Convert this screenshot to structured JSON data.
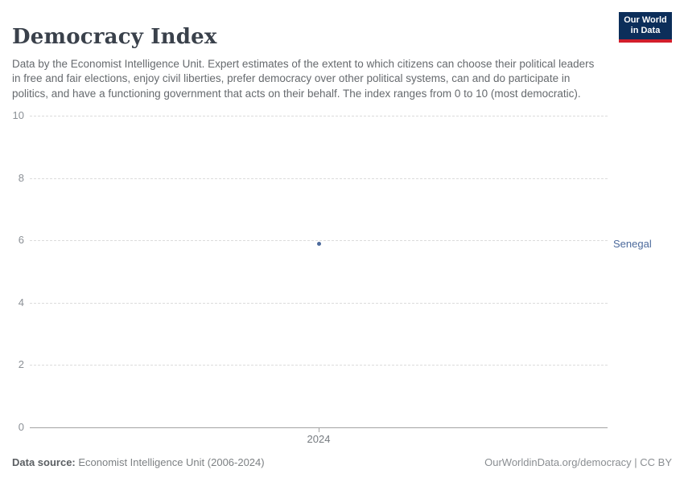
{
  "header": {
    "title": "Democracy Index",
    "subtitle": "Data by the Economist Intelligence Unit. Expert estimates of the extent to which citizens can choose their political leaders in free and fair elections, enjoy civil liberties, prefer democracy over other political systems, can and do participate in politics, and have a functioning government that acts on their behalf. The index ranges from 0 to 10 (most democratic).",
    "logo": {
      "line1": "Our World",
      "line2": "in Data"
    }
  },
  "chart_data": {
    "type": "scatter",
    "title": "Democracy Index",
    "series": [
      {
        "name": "Senegal",
        "x": [
          2024
        ],
        "values": [
          5.9
        ]
      }
    ],
    "x_tick_labels": [
      "2024"
    ],
    "y_ticks": [
      0,
      2,
      4,
      6,
      8,
      10
    ],
    "ylim": [
      0,
      10
    ],
    "grid": "horizontal-dashed",
    "legend_position": "right-entity-label",
    "entity_label": "Senegal",
    "entity_color": "#4c6a9c"
  },
  "footer": {
    "data_source_label": "Data source:",
    "data_source_value": " Economist Intelligence Unit (2006-2024)",
    "attribution": "OurWorldinData.org/democracy | CC BY"
  },
  "colors": {
    "title": "#3a414b",
    "subtitle": "#666a6e",
    "gridline": "#dcdcdc",
    "axis": "#a3a3a3",
    "tick_label": "#8b9096",
    "entity": "#4c6a9c",
    "logo_bg": "#0c2e5a",
    "logo_accent": "#d21e2b"
  }
}
